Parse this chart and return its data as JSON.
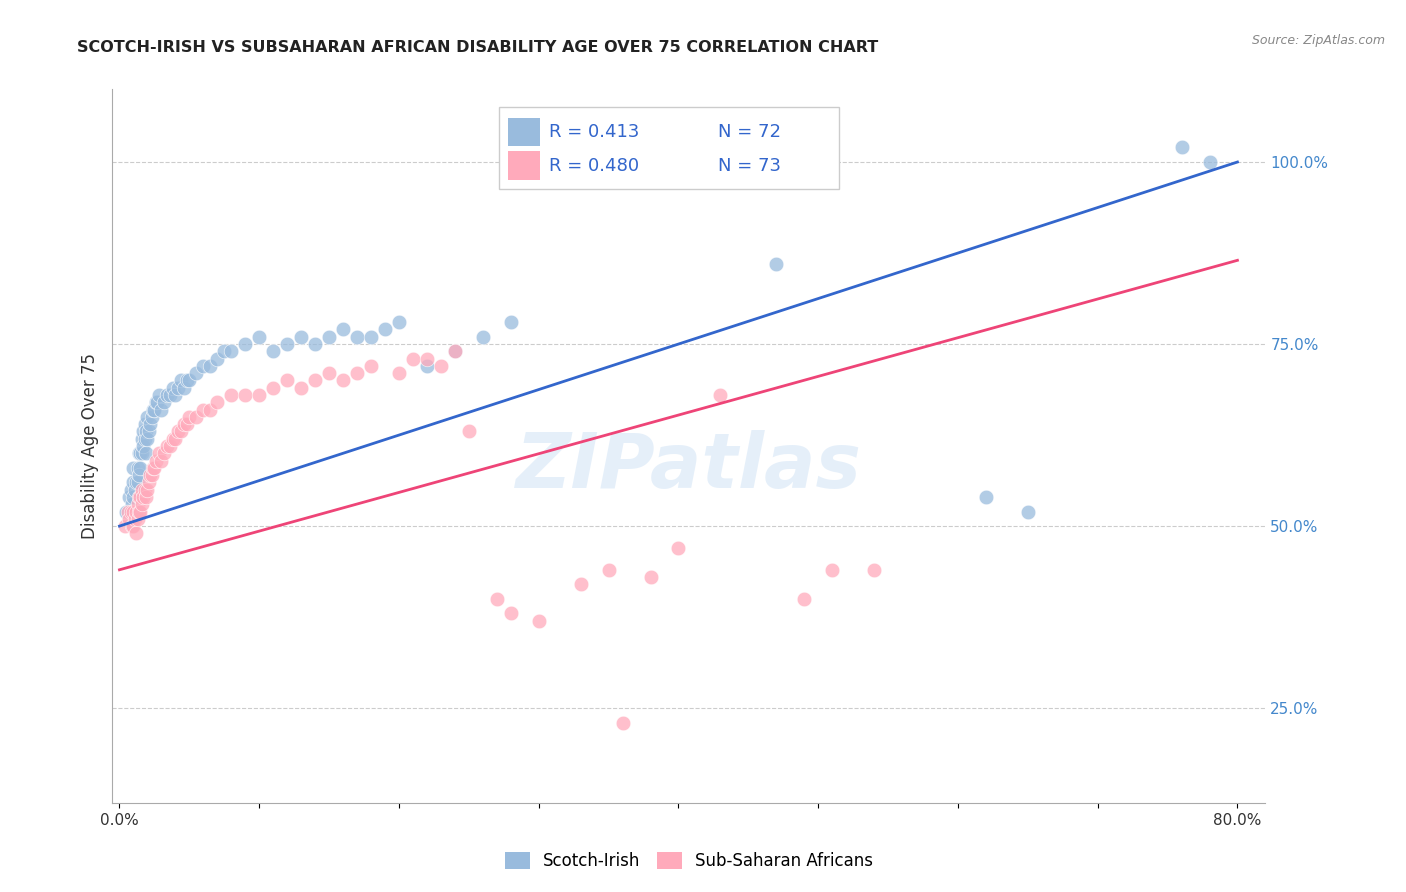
{
  "title": "SCOTCH-IRISH VS SUBSAHARAN AFRICAN DISABILITY AGE OVER 75 CORRELATION CHART",
  "source": "Source: ZipAtlas.com",
  "ylabel": "Disability Age Over 75",
  "xlim": [
    -0.005,
    0.82
  ],
  "ylim": [
    0.12,
    1.1
  ],
  "xtick_vals": [
    0.0,
    0.1,
    0.2,
    0.3,
    0.4,
    0.5,
    0.6,
    0.7,
    0.8
  ],
  "xticklabels": [
    "0.0%",
    "",
    "",
    "",
    "",
    "",
    "",
    "",
    "80.0%"
  ],
  "right_ytick_vals": [
    0.25,
    0.5,
    0.75,
    1.0
  ],
  "right_yticklabels": [
    "25.0%",
    "50.0%",
    "75.0%",
    "100.0%"
  ],
  "legend_R_blue": "R = 0.413",
  "legend_N_blue": "N = 72",
  "legend_R_pink": "R = 0.480",
  "legend_N_pink": "N = 73",
  "blue_scatter_color": "#99BBDD",
  "pink_scatter_color": "#FFAABB",
  "blue_line_color": "#3366CC",
  "pink_line_color": "#EE4477",
  "legend_text_color": "#3366CC",
  "watermark_color": "#AACCEE",
  "grid_color": "#CCCCCC",
  "spine_color": "#AAAAAA",
  "title_color": "#222222",
  "ylabel_color": "#333333",
  "source_color": "#888888",
  "right_tick_color": "#4488CC",
  "blue_line_y0": 0.5,
  "blue_line_y1": 1.0,
  "pink_line_y0": 0.44,
  "pink_line_y1": 0.865,
  "scotch_irish_x": [
    0.005,
    0.007,
    0.008,
    0.009,
    0.01,
    0.01,
    0.01,
    0.011,
    0.012,
    0.012,
    0.013,
    0.013,
    0.014,
    0.014,
    0.015,
    0.015,
    0.016,
    0.016,
    0.017,
    0.017,
    0.018,
    0.018,
    0.019,
    0.019,
    0.02,
    0.02,
    0.021,
    0.022,
    0.023,
    0.024,
    0.025,
    0.026,
    0.027,
    0.028,
    0.03,
    0.032,
    0.034,
    0.036,
    0.038,
    0.04,
    0.042,
    0.044,
    0.046,
    0.048,
    0.05,
    0.055,
    0.06,
    0.065,
    0.07,
    0.075,
    0.08,
    0.09,
    0.1,
    0.11,
    0.12,
    0.13,
    0.14,
    0.15,
    0.16,
    0.17,
    0.18,
    0.19,
    0.2,
    0.22,
    0.24,
    0.26,
    0.28,
    0.47,
    0.62,
    0.65,
    0.76,
    0.78
  ],
  "scotch_irish_y": [
    0.52,
    0.54,
    0.55,
    0.53,
    0.54,
    0.56,
    0.58,
    0.55,
    0.52,
    0.56,
    0.56,
    0.58,
    0.57,
    0.6,
    0.58,
    0.6,
    0.6,
    0.62,
    0.61,
    0.63,
    0.62,
    0.64,
    0.6,
    0.63,
    0.62,
    0.65,
    0.63,
    0.64,
    0.65,
    0.66,
    0.66,
    0.67,
    0.67,
    0.68,
    0.66,
    0.67,
    0.68,
    0.68,
    0.69,
    0.68,
    0.69,
    0.7,
    0.69,
    0.7,
    0.7,
    0.71,
    0.72,
    0.72,
    0.73,
    0.74,
    0.74,
    0.75,
    0.76,
    0.74,
    0.75,
    0.76,
    0.75,
    0.76,
    0.77,
    0.76,
    0.76,
    0.77,
    0.78,
    0.72,
    0.74,
    0.76,
    0.78,
    0.86,
    0.54,
    0.52,
    1.02,
    1.0
  ],
  "subsaharan_x": [
    0.004,
    0.006,
    0.007,
    0.008,
    0.009,
    0.01,
    0.01,
    0.011,
    0.012,
    0.012,
    0.013,
    0.013,
    0.014,
    0.014,
    0.015,
    0.015,
    0.016,
    0.016,
    0.017,
    0.018,
    0.019,
    0.02,
    0.021,
    0.022,
    0.023,
    0.024,
    0.025,
    0.026,
    0.028,
    0.03,
    0.032,
    0.034,
    0.036,
    0.038,
    0.04,
    0.042,
    0.044,
    0.046,
    0.048,
    0.05,
    0.055,
    0.06,
    0.065,
    0.07,
    0.08,
    0.09,
    0.1,
    0.11,
    0.12,
    0.13,
    0.14,
    0.15,
    0.16,
    0.17,
    0.18,
    0.2,
    0.21,
    0.22,
    0.23,
    0.24,
    0.25,
    0.27,
    0.28,
    0.3,
    0.33,
    0.35,
    0.38,
    0.4,
    0.43,
    0.49,
    0.51,
    0.54,
    0.36
  ],
  "subsaharan_y": [
    0.5,
    0.52,
    0.51,
    0.52,
    0.5,
    0.5,
    0.52,
    0.51,
    0.49,
    0.52,
    0.51,
    0.53,
    0.52,
    0.54,
    0.52,
    0.54,
    0.53,
    0.55,
    0.54,
    0.55,
    0.54,
    0.55,
    0.56,
    0.57,
    0.57,
    0.58,
    0.58,
    0.59,
    0.6,
    0.59,
    0.6,
    0.61,
    0.61,
    0.62,
    0.62,
    0.63,
    0.63,
    0.64,
    0.64,
    0.65,
    0.65,
    0.66,
    0.66,
    0.67,
    0.68,
    0.68,
    0.68,
    0.69,
    0.7,
    0.69,
    0.7,
    0.71,
    0.7,
    0.71,
    0.72,
    0.71,
    0.73,
    0.73,
    0.72,
    0.74,
    0.63,
    0.4,
    0.38,
    0.37,
    0.42,
    0.44,
    0.43,
    0.47,
    0.68,
    0.4,
    0.44,
    0.44,
    0.23
  ]
}
